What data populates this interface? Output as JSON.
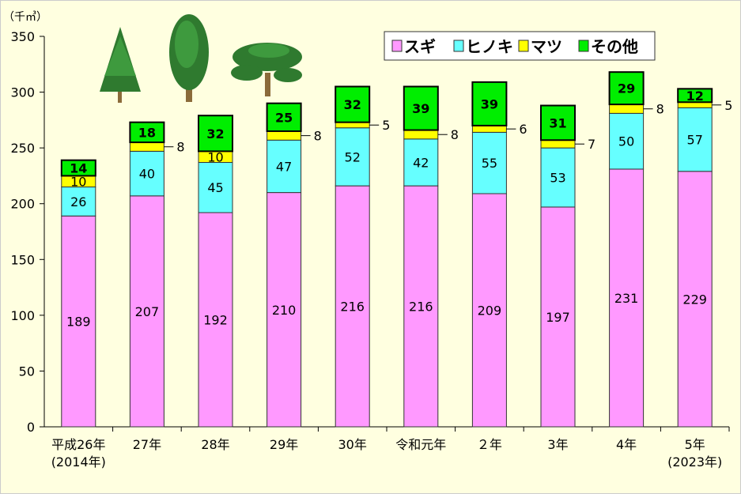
{
  "chart_data": {
    "type": "bar",
    "stacked": true,
    "unit_label": "（千㎥）",
    "ylim": [
      0,
      350
    ],
    "yticks": [
      "0",
      "50",
      "100",
      "150",
      "200",
      "250",
      "300",
      "350"
    ],
    "categories": [
      [
        "平成26年",
        "(2014年)"
      ],
      [
        "27年"
      ],
      [
        "28年"
      ],
      [
        "29年"
      ],
      [
        "30年"
      ],
      [
        "令和元年"
      ],
      [
        "２年"
      ],
      [
        "3年"
      ],
      [
        "4年"
      ],
      [
        "5年",
        "(2023年)"
      ]
    ],
    "series": [
      {
        "name": "スギ",
        "color": "#ff99ff",
        "values": [
          189,
          207,
          192,
          210,
          216,
          216,
          209,
          197,
          231,
          229
        ]
      },
      {
        "name": "ヒノキ",
        "color": "#66ffff",
        "values": [
          26,
          40,
          45,
          47,
          52,
          42,
          55,
          53,
          50,
          57
        ]
      },
      {
        "name": "マツ",
        "color": "#ffff00",
        "values": [
          10,
          8,
          10,
          8,
          5,
          8,
          6,
          7,
          8,
          5
        ]
      },
      {
        "name": "その他",
        "color": "#00ee00",
        "values": [
          14,
          18,
          32,
          25,
          32,
          39,
          39,
          31,
          29,
          12
        ]
      }
    ],
    "grid": false,
    "legend_position": "top-right"
  }
}
